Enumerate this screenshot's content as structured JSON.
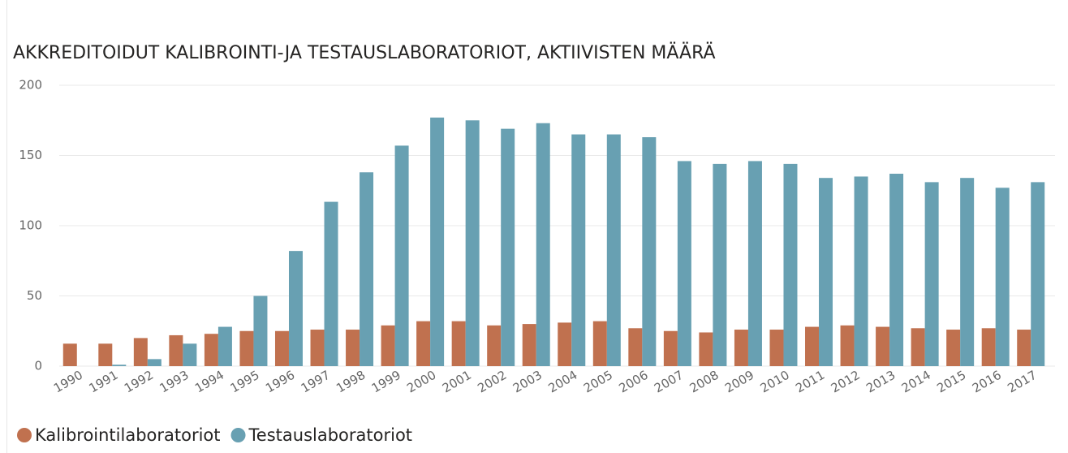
{
  "chart_data": {
    "type": "bar",
    "title": "AKKREDITOIDUT KALIBROINTI-JA TESTAUSLABORATORIOT, AKTIIVISTEN MÄÄRÄ",
    "categories": [
      "1990",
      "1991",
      "1992",
      "1993",
      "1994",
      "1995",
      "1996",
      "1997",
      "1998",
      "1999",
      "2000",
      "2001",
      "2002",
      "2003",
      "2004",
      "2005",
      "2006",
      "2007",
      "2008",
      "2009",
      "2010",
      "2011",
      "2012",
      "2013",
      "2014",
      "2015",
      "2016",
      "2017"
    ],
    "series": [
      {
        "name": "Kalibrointilaboratoriot",
        "color": "#c0714f",
        "values": [
          16,
          16,
          20,
          22,
          23,
          25,
          25,
          26,
          26,
          29,
          32,
          32,
          29,
          30,
          31,
          32,
          27,
          25,
          24,
          26,
          26,
          28,
          29,
          28,
          27,
          26,
          27,
          26
        ]
      },
      {
        "name": "Testauslaboratoriot",
        "color": "#68a0b2",
        "values": [
          0,
          1,
          5,
          16,
          28,
          50,
          82,
          117,
          138,
          157,
          177,
          175,
          169,
          173,
          165,
          165,
          163,
          146,
          144,
          146,
          144,
          134,
          135,
          137,
          131,
          134,
          127,
          131
        ]
      }
    ],
    "ylim": [
      0,
      200
    ],
    "yticks": [
      0,
      50,
      100,
      150,
      200
    ],
    "grid": true,
    "legend": "bottom-left"
  }
}
